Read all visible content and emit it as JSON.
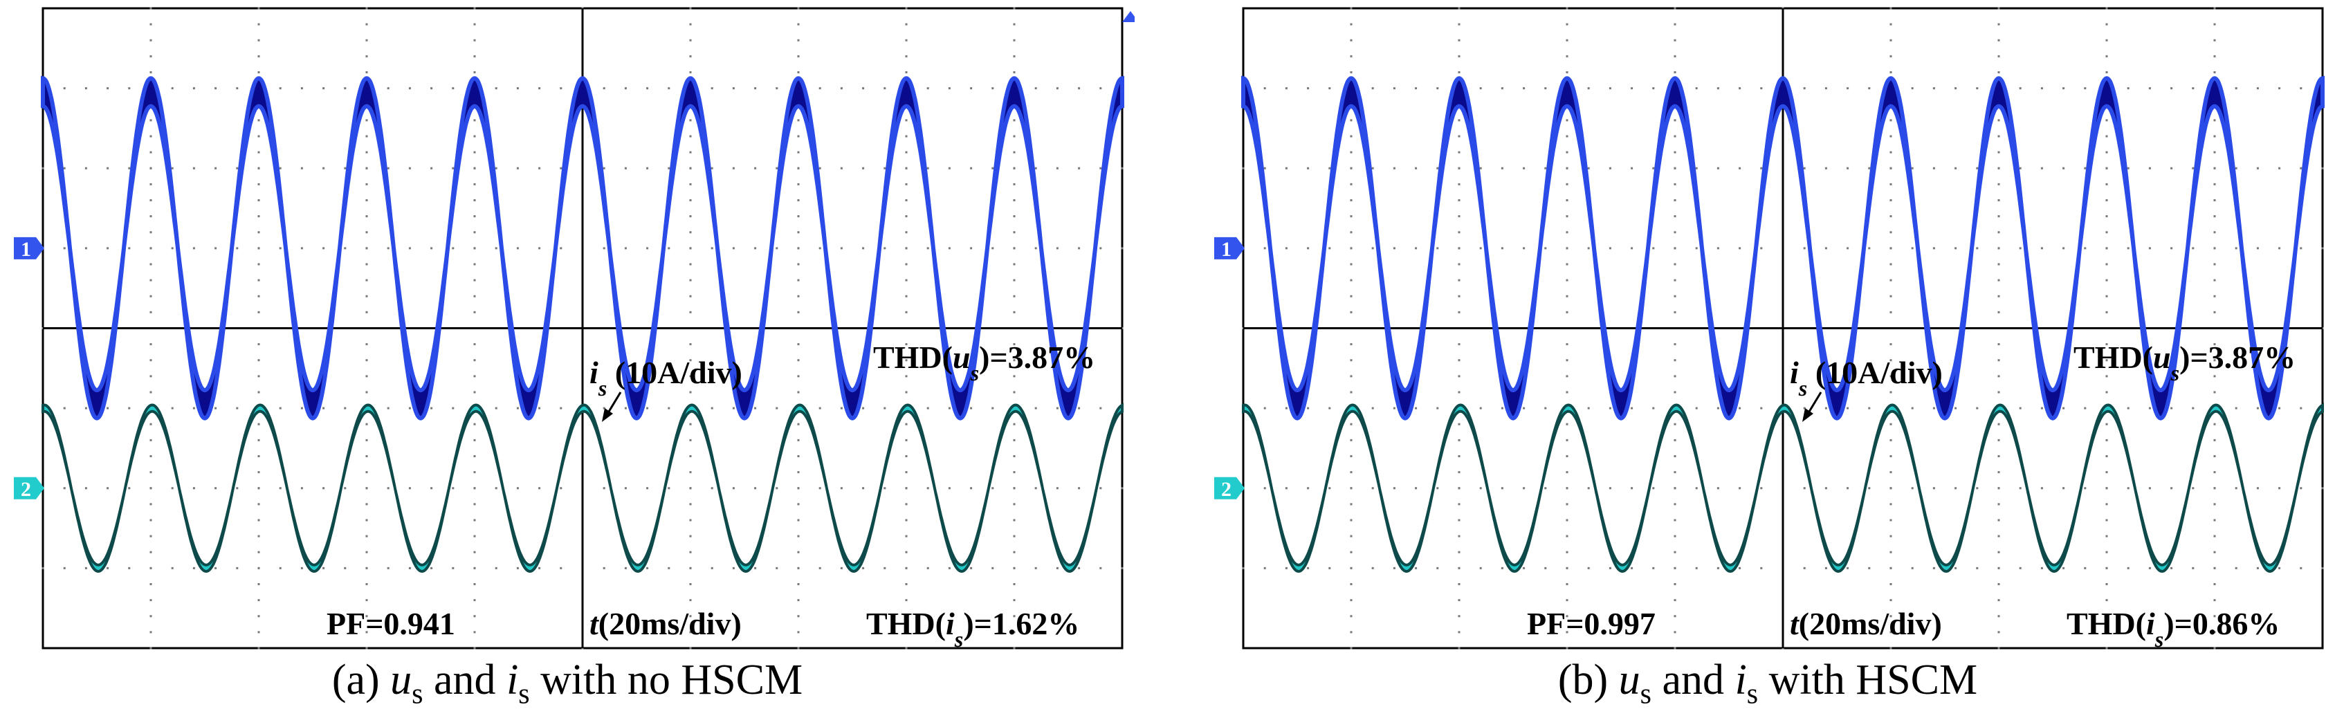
{
  "colors": {
    "voltage_trace": "#0a0a8c",
    "voltage_edge": "#2a4be8",
    "current_trace": "#22c8c8",
    "current_edge": "#0e4a4a",
    "marker1": "#3355ee",
    "marker2": "#22cccc"
  },
  "chart_data": [
    {
      "type": "line",
      "panel": "a",
      "caption": "(a) us and is with no HSCM",
      "caption_parts": {
        "label": "(a) ",
        "u": "u",
        "u_sub": "s",
        "and": " and ",
        "i": "i",
        "i_sub": "s",
        "tail": " with no HSCM"
      },
      "channel_markers": [
        "1",
        "2"
      ],
      "annotations": {
        "current_label": {
          "var": "i",
          "sub": "s",
          "text": " (10A/div)"
        },
        "thd_u": {
          "pre": "THD(",
          "var": "u",
          "sub": "s",
          "post": ")=3.87%"
        },
        "thd_i": {
          "pre": "THD(",
          "var": "i",
          "sub": "s",
          "post": ")=1.62%"
        },
        "pf": "PF=0.941",
        "time": {
          "var": "t",
          "text": "(20ms/div)"
        }
      },
      "time_per_div_ms": 20,
      "current_per_div_A": 10,
      "series": [
        {
          "name": "us",
          "periods_shown": 10,
          "center_div": -1.0,
          "amplitude_div": 1.95,
          "band_div": 0.35
        },
        {
          "name": "is",
          "periods_shown": 10,
          "center_div": 2.0,
          "amplitude_div": 1.0,
          "band_div": 0.08
        }
      ]
    },
    {
      "type": "line",
      "panel": "b",
      "caption": "(b) us and is with HSCM",
      "caption_parts": {
        "label": "(b) ",
        "u": "u",
        "u_sub": "s",
        "and": " and ",
        "i": "i",
        "i_sub": "s",
        "tail": " with HSCM"
      },
      "channel_markers": [
        "1",
        "2"
      ],
      "annotations": {
        "current_label": {
          "var": "i",
          "sub": "s",
          "text": " (10A/div)"
        },
        "thd_u": {
          "pre": "THD(",
          "var": "u",
          "sub": "s",
          "post": ")=3.87%"
        },
        "thd_i": {
          "pre": "THD(",
          "var": "i",
          "sub": "s",
          "post": ")=0.86%"
        },
        "pf": "PF=0.997",
        "time": {
          "var": "t",
          "text": "(20ms/div)"
        }
      },
      "time_per_div_ms": 20,
      "current_per_div_A": 10,
      "series": [
        {
          "name": "us",
          "periods_shown": 10,
          "center_div": -1.0,
          "amplitude_div": 1.95,
          "band_div": 0.35
        },
        {
          "name": "is",
          "periods_shown": 10,
          "center_div": 2.0,
          "amplitude_div": 1.0,
          "band_div": 0.08
        }
      ]
    }
  ]
}
